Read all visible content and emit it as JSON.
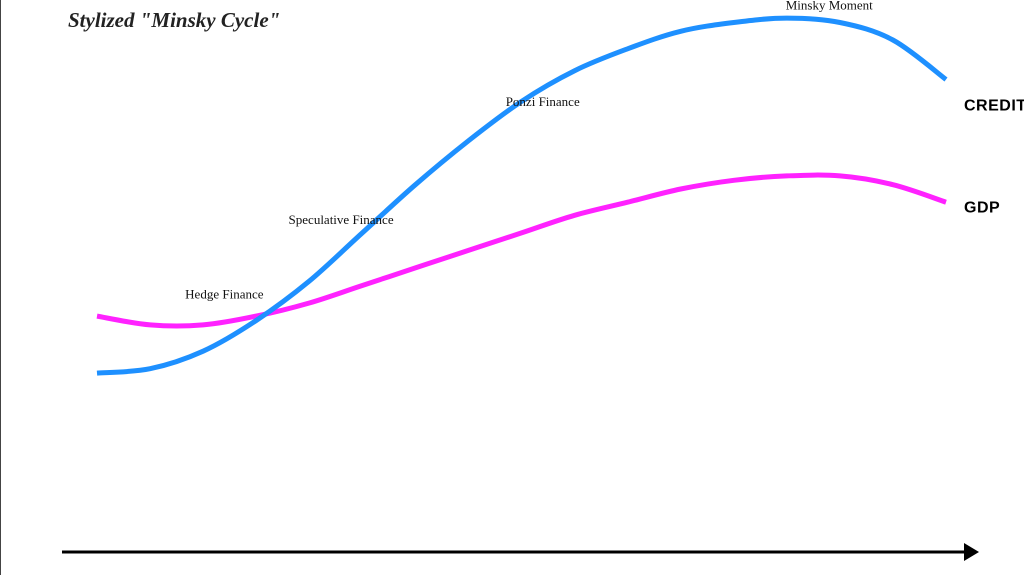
{
  "title": "Stylized \"Minsky Cycle\"",
  "colors": {
    "credit": "#1E90FF",
    "gdp": "#FF22FF",
    "axis": "#000000"
  },
  "chart_data": {
    "type": "line",
    "title": "Stylized \"Minsky Cycle\"",
    "xlabel": "",
    "ylabel": "",
    "xlim": [
      0,
      100
    ],
    "ylim": [
      0,
      100
    ],
    "grid": false,
    "axis_ticks": false,
    "series": [
      {
        "name": "CREDIT",
        "color": "#1E90FF",
        "points": [
          [
            0,
            18
          ],
          [
            5,
            19
          ],
          [
            10,
            23
          ],
          [
            15,
            30
          ],
          [
            20,
            39
          ],
          [
            25,
            50
          ],
          [
            30,
            61
          ],
          [
            35,
            71
          ],
          [
            40,
            80
          ],
          [
            45,
            87
          ],
          [
            50,
            92
          ],
          [
            55,
            96
          ],
          [
            60,
            98
          ],
          [
            65,
            99
          ],
          [
            70,
            98
          ],
          [
            75,
            94
          ],
          [
            80,
            85
          ]
        ]
      },
      {
        "name": "GDP",
        "color": "#FF22FF",
        "points": [
          [
            0,
            31
          ],
          [
            5,
            29
          ],
          [
            10,
            29
          ],
          [
            15,
            31
          ],
          [
            20,
            34
          ],
          [
            25,
            38
          ],
          [
            30,
            42
          ],
          [
            35,
            46
          ],
          [
            40,
            50
          ],
          [
            45,
            54
          ],
          [
            50,
            57
          ],
          [
            55,
            60
          ],
          [
            60,
            62
          ],
          [
            65,
            63
          ],
          [
            70,
            63
          ],
          [
            75,
            61
          ],
          [
            80,
            57
          ]
        ]
      }
    ],
    "annotations": [
      {
        "text": "Hedge Finance",
        "x": 12,
        "y": 35
      },
      {
        "text": "Speculative Finance",
        "x": 23,
        "y": 52
      },
      {
        "text": "Ponzi Finance",
        "x": 42,
        "y": 79
      },
      {
        "text": "Minsky Moment",
        "x": 69,
        "y": 101
      }
    ]
  }
}
